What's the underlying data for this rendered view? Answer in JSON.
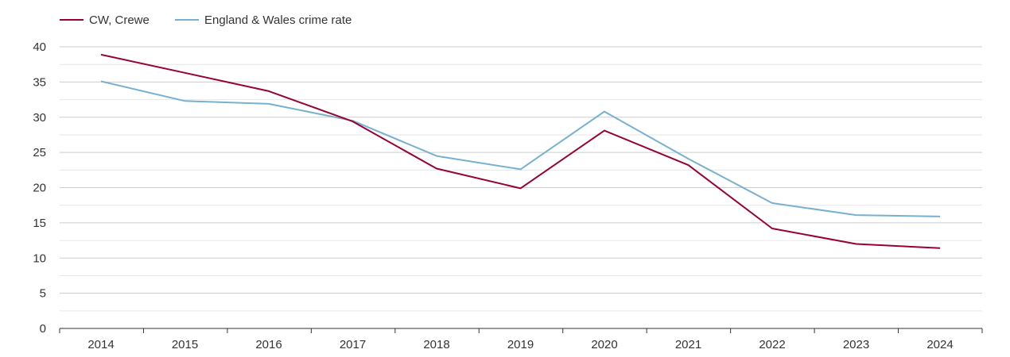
{
  "chart_data": {
    "type": "line",
    "title": "",
    "xlabel": "",
    "ylabel": "",
    "categories": [
      "2014",
      "2015",
      "2016",
      "2017",
      "2018",
      "2019",
      "2020",
      "2021",
      "2022",
      "2023",
      "2024"
    ],
    "ylim": [
      0,
      40
    ],
    "y_ticks": [
      "0",
      "5",
      "10",
      "15",
      "20",
      "25",
      "30",
      "35",
      "40"
    ],
    "y_tick_values": [
      0,
      5,
      10,
      15,
      20,
      25,
      30,
      35,
      40
    ],
    "grid": true,
    "legend_position": "top-left",
    "series": [
      {
        "name": "CW, Crewe",
        "color": "#990033",
        "values": [
          38.9,
          36.3,
          33.7,
          29.4,
          22.7,
          19.9,
          28.1,
          23.2,
          14.2,
          12.0,
          11.4
        ]
      },
      {
        "name": "England & Wales crime rate",
        "color": "#77b0d0",
        "values": [
          35.1,
          32.3,
          31.9,
          29.5,
          24.5,
          22.6,
          30.8,
          24.1,
          17.8,
          16.1,
          15.9
        ]
      }
    ]
  }
}
